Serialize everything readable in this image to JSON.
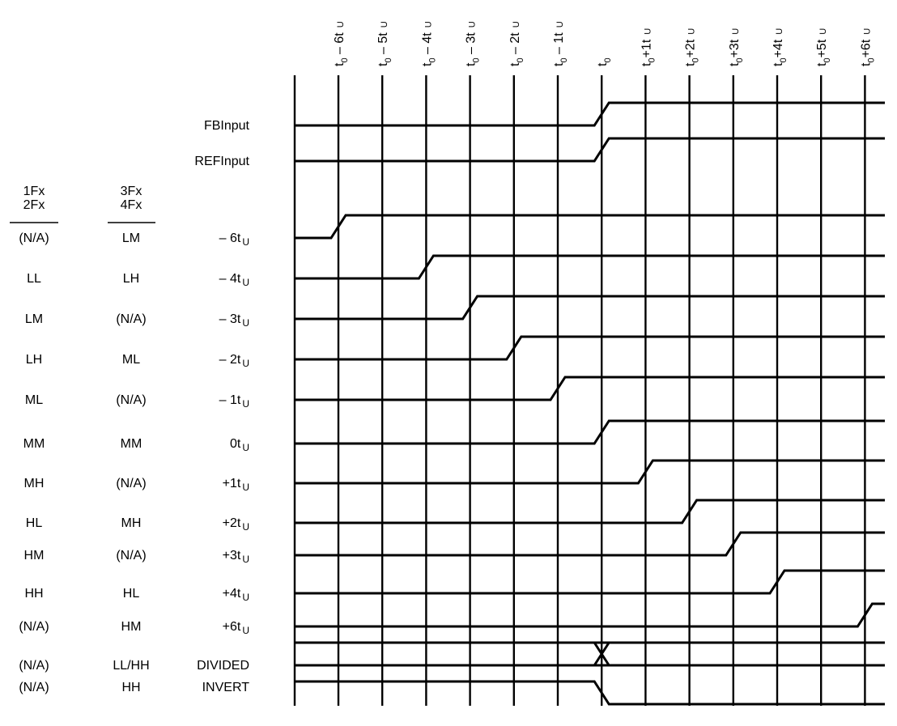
{
  "colors": {
    "line": "#000000",
    "background": "#ffffff"
  },
  "columns": {
    "top_labels": [
      {
        "main": "t",
        "sub": "0",
        "off": " – 6t",
        "u": "U"
      },
      {
        "main": "t",
        "sub": "0",
        "off": " – 5t",
        "u": "U"
      },
      {
        "main": "t",
        "sub": "0",
        "off": " – 4t",
        "u": "U"
      },
      {
        "main": "t",
        "sub": "0",
        "off": " – 3t",
        "u": "U"
      },
      {
        "main": "t",
        "sub": "0",
        "off": " – 2t",
        "u": "U"
      },
      {
        "main": "t",
        "sub": "0",
        "off": " – 1t",
        "u": "U"
      },
      {
        "main": "t",
        "sub": "0",
        "off": "",
        "u": ""
      },
      {
        "main": "t",
        "sub": "0",
        "off": "+1t",
        "u": "U"
      },
      {
        "main": "t",
        "sub": "0",
        "off": "+2t",
        "u": "U"
      },
      {
        "main": "t",
        "sub": "0",
        "off": "+3t",
        "u": "U"
      },
      {
        "main": "t",
        "sub": "0",
        "off": "+4t",
        "u": "U"
      },
      {
        "main": "t",
        "sub": "0",
        "off": "+5t",
        "u": "U"
      },
      {
        "main": "t",
        "sub": "0",
        "off": "+6t",
        "u": "U"
      }
    ]
  },
  "headers": {
    "col1": [
      "1Fx",
      "2Fx"
    ],
    "col2": [
      "3Fx",
      "4Fx"
    ]
  },
  "inputs": [
    {
      "label": "FBInput"
    },
    {
      "label": "REFInput"
    }
  ],
  "rows": [
    {
      "c1": "(N/A)",
      "c2": "LM",
      "main": "– 6t",
      "u": "U",
      "edge": -6
    },
    {
      "c1": "LL",
      "c2": "LH",
      "main": "– 4t",
      "u": "U",
      "edge": -4
    },
    {
      "c1": "LM",
      "c2": "(N/A)",
      "main": "– 3t",
      "u": "U",
      "edge": -3
    },
    {
      "c1": "LH",
      "c2": "ML",
      "main": "– 2t",
      "u": "U",
      "edge": -2
    },
    {
      "c1": "ML",
      "c2": "(N/A)",
      "main": "– 1t",
      "u": "U",
      "edge": -1
    },
    {
      "c1": "MM",
      "c2": "MM",
      "main": "0t",
      "u": "U",
      "edge": 0
    },
    {
      "c1": "MH",
      "c2": "(N/A)",
      "main": "+1t",
      "u": "U",
      "edge": 1
    },
    {
      "c1": "HL",
      "c2": "MH",
      "main": "+2t",
      "u": "U",
      "edge": 2
    },
    {
      "c1": "HM",
      "c2": "(N/A)",
      "main": "+3t",
      "u": "U",
      "edge": 3
    },
    {
      "c1": "HH",
      "c2": "HL",
      "main": "+4t",
      "u": "U",
      "edge": 4
    },
    {
      "c1": "(N/A)",
      "c2": "HM",
      "main": "+6t",
      "u": "U",
      "edge": 6
    },
    {
      "c1": "(N/A)",
      "c2": "LL/HH",
      "main": "DIVIDED",
      "u": "",
      "edge": 0
    },
    {
      "c1": "(N/A)",
      "c2": "HH",
      "main": "INVERT",
      "u": "",
      "edge": 0
    }
  ]
}
